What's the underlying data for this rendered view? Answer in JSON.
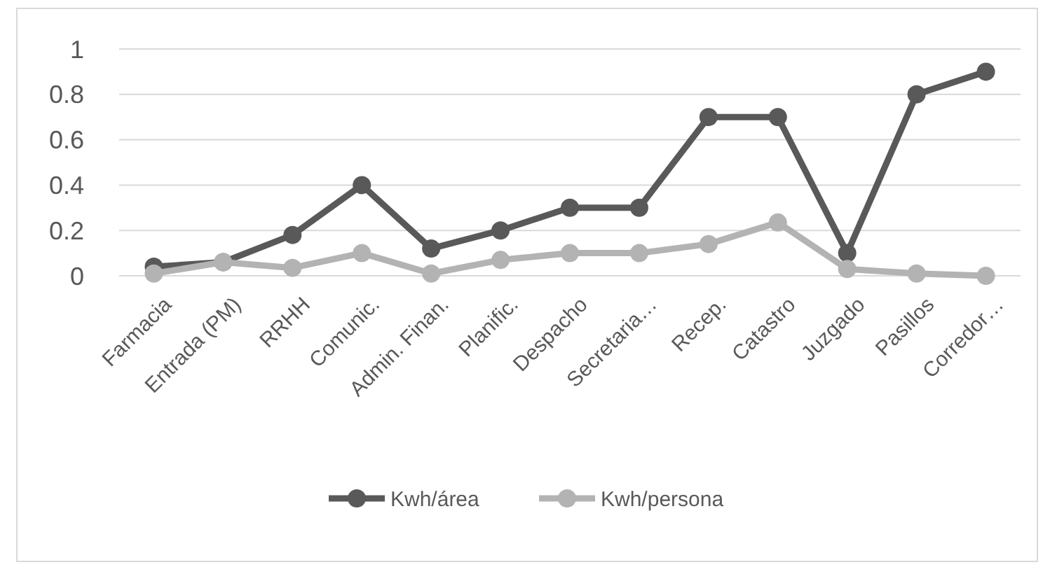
{
  "chart_data": {
    "type": "line",
    "categories": [
      "Farmacia",
      "Entrada (PM)",
      "RRHH",
      "Comunic.",
      "Admin. Finan.",
      "Planific.",
      "Despacho",
      "Secretaria…",
      "Recep.",
      "Catastro",
      "Juzgado",
      "Pasillos",
      "Corredor…"
    ],
    "series": [
      {
        "name": "Kwh/área",
        "color": "#595959",
        "values": [
          0.04,
          0.06,
          0.18,
          0.4,
          0.12,
          0.2,
          0.3,
          0.3,
          0.7,
          0.7,
          0.1,
          0.8,
          0.9
        ]
      },
      {
        "name": "Kwh/persona",
        "color": "#b3b3b3",
        "values": [
          0.01,
          0.06,
          0.035,
          0.1,
          0.01,
          0.07,
          0.1,
          0.1,
          0.14,
          0.235,
          0.03,
          0.01,
          0.0
        ]
      }
    ],
    "ylim": [
      0,
      1
    ],
    "yticks": [
      0,
      {
        "value": 0.2,
        "label": "0.2"
      },
      {
        "value": 0.4,
        "label": "0.4"
      },
      {
        "value": 0.6,
        "label": "0.6"
      },
      {
        "value": 0.8,
        "label": "0.8"
      },
      1
    ],
    "grid": "y",
    "legend": "bottom",
    "marker": "circle",
    "line_style": "solid"
  }
}
